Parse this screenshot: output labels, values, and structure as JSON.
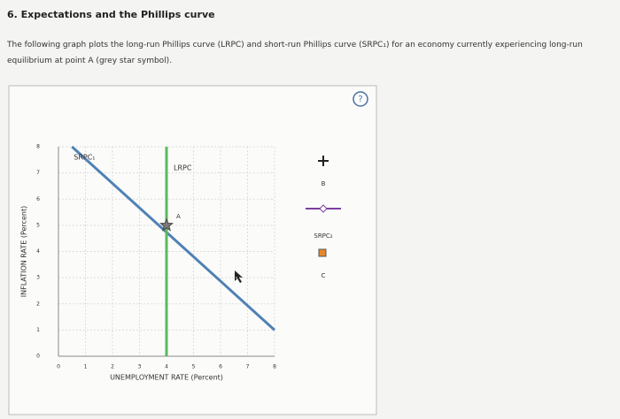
{
  "header": {
    "title": "6. Expectations and the Phillips curve"
  },
  "intro": "The following graph plots the long-run Phillips curve (LRPC) and short-run Phillips curve (SRPC₁) for an economy currently experiencing long-run equilibrium at point A (grey star symbol).",
  "help": "?",
  "chart_data": {
    "type": "line",
    "xlabel": "UNEMPLOYMENT RATE (Percent)",
    "ylabel": "INFLATION RATE (Percent)",
    "xlim": [
      0,
      8
    ],
    "ylim": [
      0,
      8
    ],
    "xticks": [
      0,
      1,
      2,
      3,
      4,
      5,
      6,
      7,
      8
    ],
    "yticks": [
      0,
      1,
      2,
      3,
      4,
      5,
      6,
      7,
      8
    ],
    "grid": true,
    "series": [
      {
        "name": "SRPC₁",
        "color": "#4f81b5",
        "x": [
          0.5,
          8
        ],
        "values": [
          8,
          1
        ]
      },
      {
        "name": "LRPC",
        "color": "#5cb85c",
        "x": [
          4,
          4
        ],
        "values": [
          0,
          8
        ]
      }
    ],
    "points": [
      {
        "label": "A",
        "x": 4,
        "y": 5,
        "color": "#7a7a7a"
      }
    ]
  },
  "palette": [
    {
      "label": "B",
      "color": "#222"
    },
    {
      "label": "SRPC₂",
      "color": "#7b3fa0"
    },
    {
      "label": "C",
      "color": "#e8872a"
    }
  ]
}
